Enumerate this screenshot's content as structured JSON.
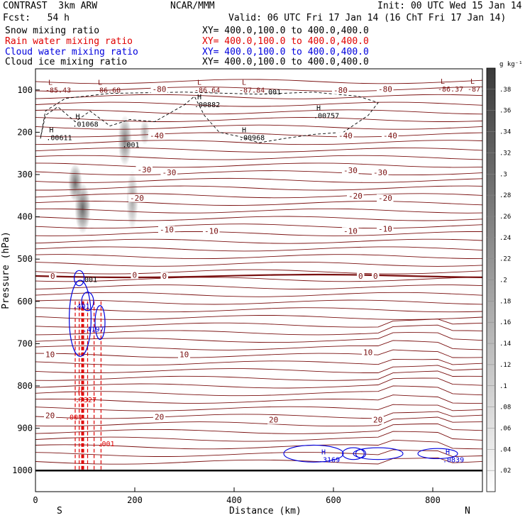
{
  "header": {
    "title_left": "CONTRAST  3km ARW",
    "center": "NCAR/MMM",
    "init": "Init: 00 UTC Wed 15 Jan 14",
    "fcst": "Fcst:   54 h",
    "valid": "Valid: 06 UTC Fri 17 Jan 14 (16 ChT Fri 17 Jan 14)"
  },
  "legend": [
    {
      "label": "Snow mixing ratio",
      "xy": "XY= 400.0,100.0 to 400.0,400.0",
      "color": "#000000"
    },
    {
      "label": "Rain water mixing ratio",
      "xy": "XY= 400.0,100.0 to 400.0,400.0",
      "color": "#e00000"
    },
    {
      "label": "Cloud water mixing ratio",
      "xy": "XY= 400.0,100.0 to 400.0,400.0",
      "color": "#0000dd"
    },
    {
      "label": "Cloud ice mixing ratio",
      "xy": "XY= 400.0,100.0 to 400.0,400.0",
      "color": "#000000"
    }
  ],
  "chart_data": {
    "type": "heatmap",
    "xlabel": "Distance (km)",
    "ylabel": "Pressure (hPa)",
    "xlim": [
      0,
      900
    ],
    "ylim": [
      1050,
      50
    ],
    "x_ticks": [
      0,
      200,
      400,
      600,
      800
    ],
    "y_ticks": [
      100,
      200,
      300,
      400,
      500,
      600,
      700,
      800,
      900,
      1000
    ],
    "end_labels": {
      "left": "S",
      "right": "N"
    },
    "colorbar": {
      "unit": "g kg⁻¹",
      "ticks": [
        ".02",
        ".04",
        ".06",
        ".08",
        ".1",
        ".12",
        ".14",
        ".16",
        ".18",
        ".2",
        ".22",
        ".24",
        ".26",
        ".28",
        ".3",
        ".32",
        ".34",
        ".36",
        ".38"
      ]
    },
    "temperature_contour_labels": [
      {
        "x": 230,
        "p": 208,
        "text": "-40"
      },
      {
        "x": 610,
        "p": 208,
        "text": "-40"
      },
      {
        "x": 700,
        "p": 208,
        "text": "-40"
      },
      {
        "x": 205,
        "p": 288,
        "text": "-30"
      },
      {
        "x": 255,
        "p": 295,
        "text": "-30"
      },
      {
        "x": 620,
        "p": 290,
        "text": "-30"
      },
      {
        "x": 680,
        "p": 295,
        "text": "-30"
      },
      {
        "x": 190,
        "p": 355,
        "text": "-20"
      },
      {
        "x": 630,
        "p": 350,
        "text": "-20"
      },
      {
        "x": 690,
        "p": 355,
        "text": "-20"
      },
      {
        "x": 250,
        "p": 430,
        "text": "-10"
      },
      {
        "x": 340,
        "p": 433,
        "text": "-10"
      },
      {
        "x": 620,
        "p": 433,
        "text": "-10"
      },
      {
        "x": 690,
        "p": 428,
        "text": "-10"
      },
      {
        "x": 30,
        "p": 540,
        "text": "0"
      },
      {
        "x": 195,
        "p": 537,
        "text": "0"
      },
      {
        "x": 255,
        "p": 540,
        "text": "0"
      },
      {
        "x": 650,
        "p": 540,
        "text": "0"
      },
      {
        "x": 680,
        "p": 540,
        "text": "0"
      },
      {
        "x": 20,
        "p": 725,
        "text": "10"
      },
      {
        "x": 290,
        "p": 725,
        "text": "10"
      },
      {
        "x": 660,
        "p": 720,
        "text": "10"
      },
      {
        "x": 20,
        "p": 870,
        "text": "20"
      },
      {
        "x": 240,
        "p": 873,
        "text": "20"
      },
      {
        "x": 470,
        "p": 880,
        "text": "20"
      },
      {
        "x": 680,
        "p": 880,
        "text": "20"
      },
      {
        "x": 235,
        "p": 98,
        "text": "-80"
      },
      {
        "x": 600,
        "p": 100,
        "text": "-80"
      },
      {
        "x": 690,
        "p": 98,
        "text": "-80"
      }
    ],
    "extrema_labels": [
      {
        "x": 20,
        "p": 88,
        "mark": "L",
        "value": "-85.43"
      },
      {
        "x": 120,
        "p": 88,
        "mark": "L",
        "value": "-86.68"
      },
      {
        "x": 320,
        "p": 88,
        "mark": "L",
        "value": "-86.64"
      },
      {
        "x": 410,
        "p": 88,
        "mark": "L",
        "value": "-87.84"
      },
      {
        "x": 810,
        "p": 85,
        "mark": "L",
        "value": "-86.37"
      },
      {
        "x": 870,
        "p": 85,
        "mark": "L",
        "value": "-87."
      },
      {
        "x": 320,
        "p": 122,
        "mark": "H",
        "value": ".00882"
      },
      {
        "x": 560,
        "p": 148,
        "mark": "H",
        "value": ".00757"
      },
      {
        "x": 75,
        "p": 168,
        "mark": "H",
        "value": ".01068"
      },
      {
        "x": 410,
        "p": 200,
        "mark": "H",
        "value": ".00968"
      },
      {
        "x": 22,
        "p": 200,
        "mark": "H",
        "value": ".00611"
      },
      {
        "x": 570,
        "p": 962,
        "mark": "H",
        "value": ".3169"
      },
      {
        "x": 820,
        "p": 962,
        "mark": "H",
        "value": ".0839"
      },
      {
        "x": 80,
        "p": 820,
        "mark": "H",
        "value": ".7327"
      }
    ],
    "misc_labels": [
      {
        "x": 460,
        "p": 110,
        "text": ".001"
      },
      {
        "x": 175,
        "p": 235,
        "text": ".001"
      },
      {
        "x": 90,
        "p": 554,
        "text": ".001"
      },
      {
        "x": 75,
        "p": 617,
        "text": ".401"
      },
      {
        "x": 95,
        "p": 672,
        "text": ".4197"
      },
      {
        "x": 60,
        "p": 880,
        "text": ".001"
      },
      {
        "x": 125,
        "p": 943,
        "text": ".001"
      }
    ],
    "snow_cores": [
      {
        "x": 80,
        "p": 320,
        "rx": 14,
        "rp": 45,
        "a": 0.55
      },
      {
        "x": 95,
        "p": 380,
        "rx": 16,
        "rp": 60,
        "a": 0.6
      },
      {
        "x": 180,
        "p": 220,
        "rx": 14,
        "rp": 60,
        "a": 0.5
      },
      {
        "x": 195,
        "p": 360,
        "rx": 12,
        "rp": 70,
        "a": 0.35
      },
      {
        "x": 220,
        "p": 200,
        "rx": 10,
        "rp": 30,
        "a": 0.3
      }
    ],
    "freezing_level_hpa": 540,
    "surface_hpa": 1000
  }
}
